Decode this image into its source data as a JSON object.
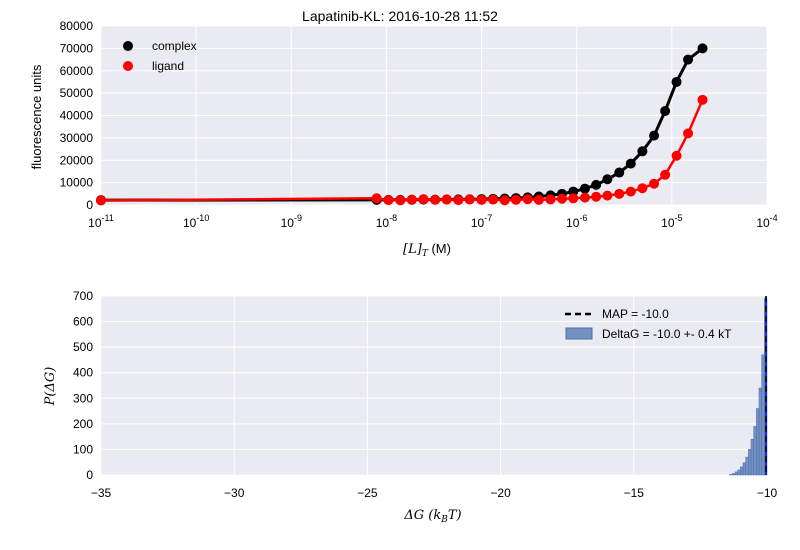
{
  "chart_data": [
    {
      "type": "scatter",
      "title": "Lapatinib-KL: 2016-10-28 11:52",
      "xlabel": "[L]_T (M)",
      "xlabel_math": "[L]",
      "xlabel_sub": "T",
      "xlabel_unit": " (M)",
      "ylabel": "fluorescence units",
      "xscale": "log",
      "xlim": [
        1e-11,
        0.0001
      ],
      "ylim": [
        0,
        80000
      ],
      "grid": true,
      "legend_position": "upper-left",
      "x_tick_values": [
        1e-11,
        1e-10,
        1e-09,
        1e-08,
        1e-07,
        1e-06,
        1e-05,
        0.0001
      ],
      "x_tick_exponents": [
        "-11",
        "-10",
        "-9",
        "-8",
        "-7",
        "-6",
        "-5",
        "-4"
      ],
      "x_tick_base": "10",
      "y_ticks": [
        0,
        10000,
        20000,
        30000,
        40000,
        50000,
        60000,
        70000,
        80000
      ],
      "series": [
        {
          "name": "complex",
          "color": "#000000",
          "x": [
            1e-11,
            7.9e-09,
            1.05e-08,
            1.4e-08,
            1.85e-08,
            2.45e-08,
            3.25e-08,
            4.3e-08,
            5.7e-08,
            7.5e-08,
            1e-07,
            1.32e-07,
            1.75e-07,
            2.3e-07,
            3.05e-07,
            4e-07,
            5.3e-07,
            7e-07,
            9.2e-07,
            1.22e-06,
            1.6e-06,
            2.1e-06,
            2.8e-06,
            3.7e-06,
            4.9e-06,
            6.5e-06,
            8.5e-06,
            1.12e-05,
            1.48e-05,
            2.1e-05
          ],
          "y": [
            2200,
            2300,
            2300,
            2300,
            2350,
            2400,
            2400,
            2450,
            2500,
            2550,
            2650,
            2750,
            2900,
            3100,
            3400,
            3800,
            4300,
            5000,
            6000,
            7300,
            9000,
            11500,
            14500,
            18500,
            24000,
            31000,
            42000,
            55000,
            65000,
            70000
          ]
        },
        {
          "name": "ligand",
          "color": "#ff0000",
          "x": [
            1e-11,
            7.9e-09,
            1.05e-08,
            1.4e-08,
            1.85e-08,
            2.45e-08,
            3.25e-08,
            4.3e-08,
            5.7e-08,
            7.5e-08,
            1e-07,
            1.32e-07,
            1.75e-07,
            2.3e-07,
            3.05e-07,
            4e-07,
            5.3e-07,
            7e-07,
            9.2e-07,
            1.22e-06,
            1.6e-06,
            2.1e-06,
            2.8e-06,
            3.7e-06,
            4.9e-06,
            6.5e-06,
            8.5e-06,
            1.12e-05,
            1.48e-05,
            2.1e-05
          ],
          "y": [
            2000,
            3000,
            2200,
            2100,
            2400,
            2600,
            2300,
            2500,
            2200,
            2500,
            2300,
            2400,
            2100,
            2300,
            2600,
            2300,
            2500,
            2800,
            3000,
            3300,
            3700,
            4200,
            5000,
            6000,
            7500,
            9500,
            13500,
            22000,
            32000,
            47000
          ]
        }
      ]
    },
    {
      "type": "bar",
      "xlabel": "ΔG (k_B T)",
      "xlabel_math": "ΔG (k",
      "xlabel_sub": "B",
      "xlabel_end": "T)",
      "ylabel": "P(ΔG)",
      "xlim": [
        -35,
        -10
      ],
      "ylim": [
        0,
        700
      ],
      "grid": true,
      "legend_position": "upper-right",
      "x_ticks": [
        -35,
        -30,
        -25,
        -20,
        -15,
        -10
      ],
      "x_tick_labels": [
        "−35",
        "−30",
        "−25",
        "−20",
        "−15",
        "−10"
      ],
      "y_ticks": [
        0,
        100,
        200,
        300,
        400,
        500,
        600,
        700
      ],
      "map_value": -10.0,
      "map_label": "MAP = -10.0",
      "hist_label": "DeltaG = -10.0 +- 0.4 kT",
      "hist_color": "#4c72b0",
      "map_color": "#000000",
      "bin_width": 0.1,
      "bin_left_edges": [
        -11.4,
        -11.3,
        -11.2,
        -11.1,
        -11.0,
        -10.9,
        -10.8,
        -10.7,
        -10.6,
        -10.5,
        -10.4,
        -10.3,
        -10.2,
        -10.1
      ],
      "bin_values": [
        3,
        6,
        12,
        20,
        32,
        48,
        70,
        100,
        140,
        190,
        260,
        340,
        470,
        690
      ]
    }
  ]
}
